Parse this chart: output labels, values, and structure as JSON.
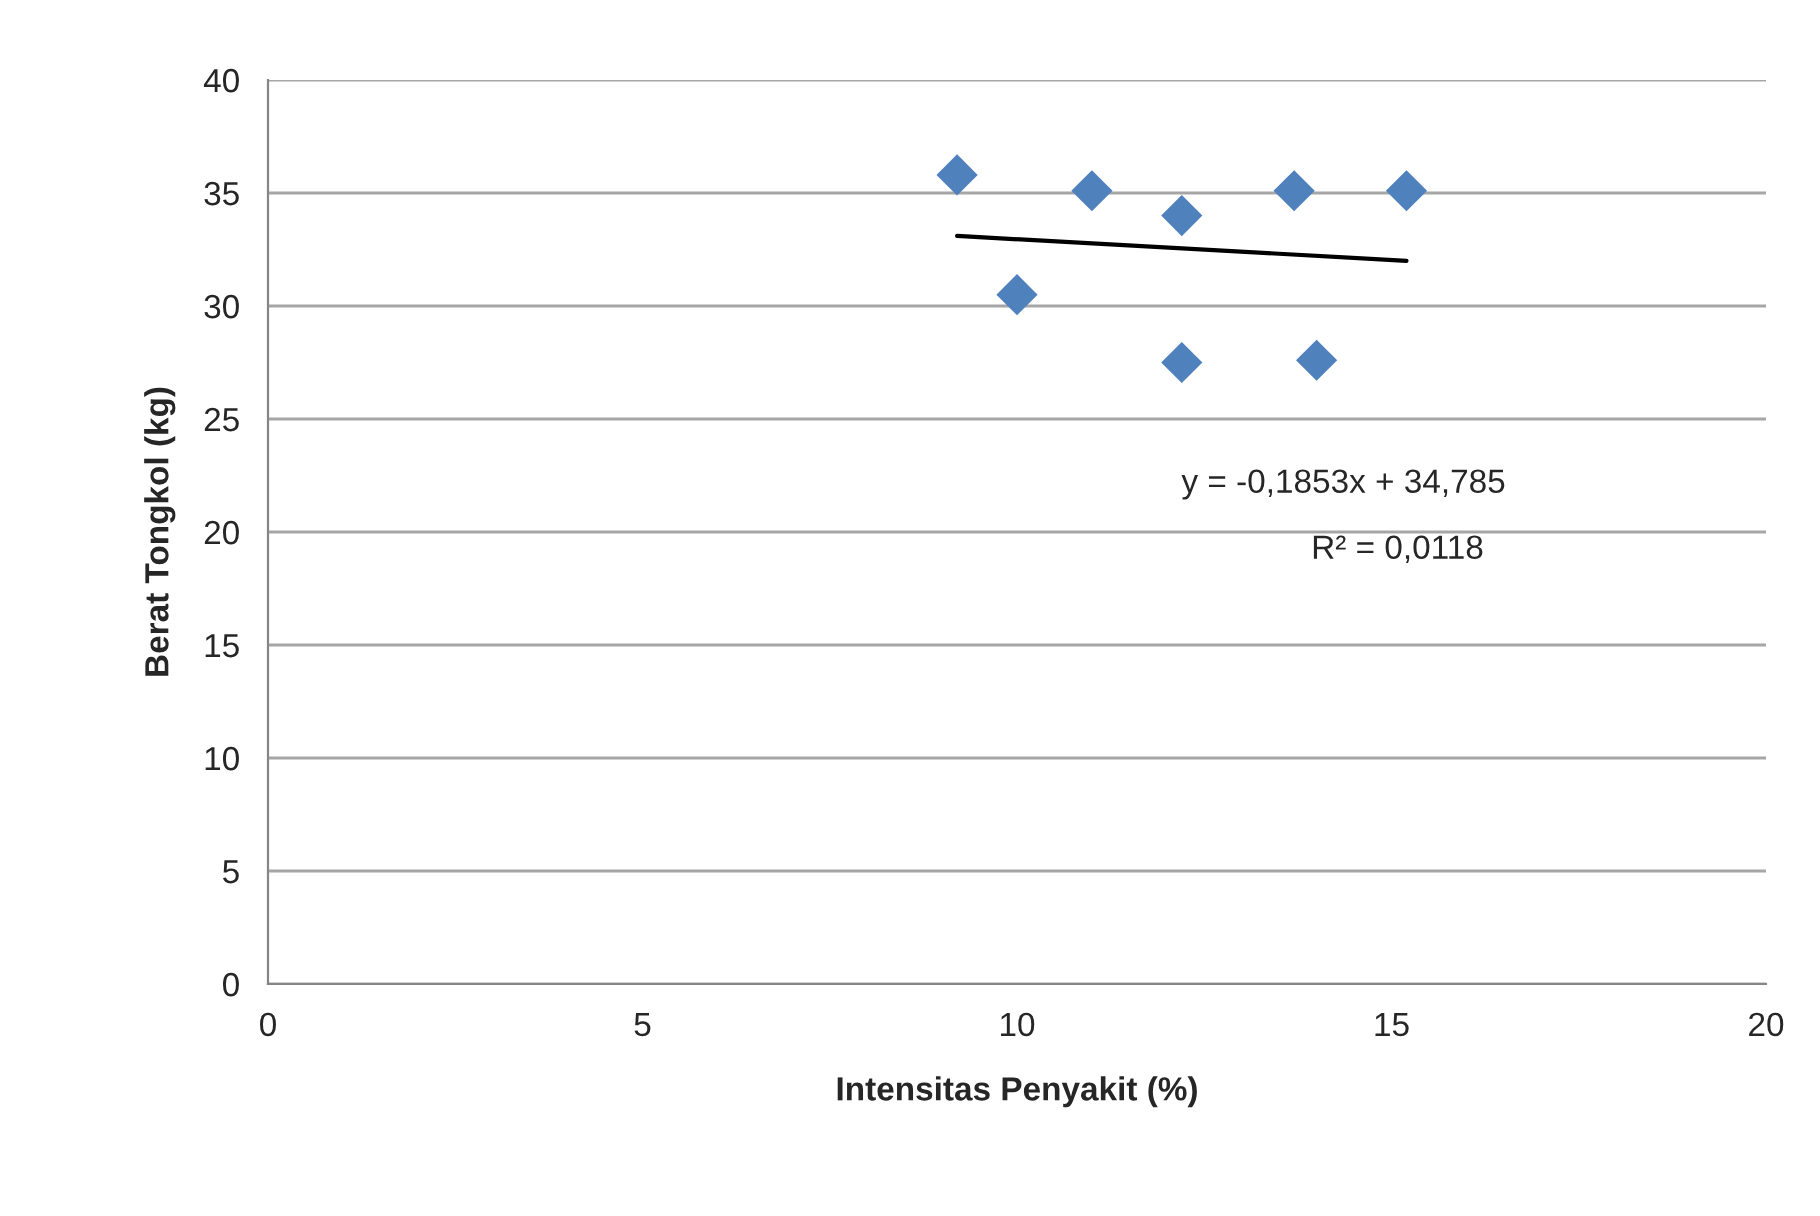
{
  "chart_data": {
    "type": "scatter",
    "xlabel": "Intensitas Penyakit (%)",
    "ylabel": "Berat Tongkol (kg)",
    "xlim": [
      0,
      20
    ],
    "xticks": [
      0,
      5,
      10,
      15,
      20
    ],
    "ylim": [
      0,
      40
    ],
    "yticks": [
      0,
      5,
      10,
      15,
      20,
      25,
      30,
      35,
      40
    ],
    "grid": "y",
    "series": [
      {
        "color": "#4f81bd",
        "marker": "diamond",
        "x": [
          9.2,
          10.0,
          11.0,
          12.2,
          12.2,
          13.7,
          14.0,
          15.2
        ],
        "values": [
          35.8,
          30.5,
          35.1,
          34.0,
          27.5,
          35.1,
          27.6,
          35.1
        ]
      },
      {
        "type": "line",
        "marker": "none",
        "color": "#000000",
        "x": [
          9.2,
          15.2
        ],
        "values": [
          33.1,
          32.0
        ]
      }
    ],
    "annotations": [
      "y = -0,1853x + 34,785",
      "R² = 0,0118"
    ]
  }
}
